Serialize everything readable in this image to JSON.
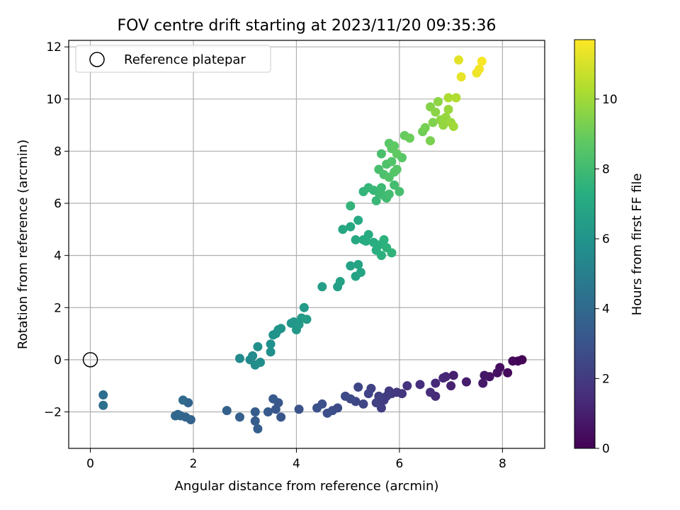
{
  "chart_data": {
    "type": "scatter",
    "title": "FOV centre drift starting at 2023/11/20 09:35:36",
    "xlabel": "Angular distance from reference (arcmin)",
    "ylabel": "Rotation from reference (arcmin)",
    "xlim": [
      -0.42,
      8.82
    ],
    "ylim": [
      -3.4,
      12.25
    ],
    "xticks": [
      0,
      2,
      4,
      6,
      8
    ],
    "yticks": [
      -2,
      0,
      2,
      4,
      6,
      8,
      10,
      12
    ],
    "grid": true,
    "legend": {
      "placement": "top-left",
      "entries": [
        "Reference platepar"
      ]
    },
    "reference_point": {
      "x": 0,
      "y": 0,
      "label": "Reference platepar"
    },
    "colorbar": {
      "label": "Hours from first FF file",
      "min": 0,
      "max": 11.7,
      "ticks": [
        0,
        2,
        4,
        6,
        8,
        10
      ],
      "colormap": "viridis"
    },
    "points": [
      [
        8.38,
        0.0,
        0.0
      ],
      [
        8.3,
        -0.05,
        0.1
      ],
      [
        8.2,
        -0.05,
        0.2
      ],
      [
        8.1,
        -0.5,
        0.3
      ],
      [
        7.95,
        -0.3,
        0.4
      ],
      [
        7.9,
        -0.5,
        0.5
      ],
      [
        7.75,
        -0.65,
        0.6
      ],
      [
        7.65,
        -0.6,
        0.7
      ],
      [
        7.62,
        -0.9,
        0.8
      ],
      [
        7.3,
        -0.85,
        0.9
      ],
      [
        7.05,
        -0.6,
        1.0
      ],
      [
        7.0,
        -1.0,
        1.1
      ],
      [
        6.9,
        -0.65,
        1.2
      ],
      [
        6.85,
        -0.7,
        1.3
      ],
      [
        6.7,
        -0.9,
        1.35
      ],
      [
        6.7,
        -1.4,
        1.4
      ],
      [
        6.6,
        -1.25,
        1.5
      ],
      [
        6.4,
        -0.95,
        1.6
      ],
      [
        6.15,
        -1.0,
        1.7
      ],
      [
        6.05,
        -1.3,
        1.8
      ],
      [
        5.95,
        -1.25,
        1.9
      ],
      [
        5.85,
        -1.3,
        1.95
      ],
      [
        5.8,
        -1.2,
        2.0
      ],
      [
        5.75,
        -1.4,
        2.05
      ],
      [
        5.7,
        -1.55,
        2.1
      ],
      [
        5.65,
        -1.85,
        2.15
      ],
      [
        5.6,
        -1.4,
        2.2
      ],
      [
        5.55,
        -1.65,
        2.25
      ],
      [
        5.45,
        -1.1,
        2.3
      ],
      [
        5.4,
        -1.3,
        2.35
      ],
      [
        5.3,
        -1.7,
        2.4
      ],
      [
        5.2,
        -1.05,
        2.45
      ],
      [
        5.15,
        -1.6,
        2.5
      ],
      [
        5.05,
        -1.5,
        2.55
      ],
      [
        4.95,
        -1.4,
        2.6
      ],
      [
        4.8,
        -1.85,
        2.7
      ],
      [
        4.7,
        -1.95,
        2.75
      ],
      [
        4.6,
        -2.05,
        2.8
      ],
      [
        4.5,
        -1.7,
        2.85
      ],
      [
        4.4,
        -1.85,
        2.9
      ],
      [
        4.05,
        -1.9,
        3.0
      ],
      [
        3.7,
        -2.2,
        3.1
      ],
      [
        3.65,
        -1.65,
        3.15
      ],
      [
        3.6,
        -1.9,
        3.2
      ],
      [
        3.55,
        -1.5,
        3.25
      ],
      [
        3.45,
        -2.0,
        3.3
      ],
      [
        3.2,
        -2.0,
        3.4
      ],
      [
        3.2,
        -2.35,
        3.45
      ],
      [
        3.25,
        -2.65,
        3.5
      ],
      [
        2.9,
        -2.2,
        3.55
      ],
      [
        2.65,
        -1.95,
        3.6
      ],
      [
        1.95,
        -2.3,
        3.7
      ],
      [
        1.9,
        -1.65,
        3.75
      ],
      [
        1.85,
        -2.2,
        3.8
      ],
      [
        1.75,
        -2.15,
        3.85
      ],
      [
        1.7,
        -2.1,
        3.9
      ],
      [
        1.65,
        -2.15,
        3.95
      ],
      [
        1.8,
        -1.55,
        4.0
      ],
      [
        0.25,
        -1.35,
        4.2
      ],
      [
        0.25,
        -1.75,
        4.3
      ],
      [
        2.9,
        0.05,
        5.5
      ],
      [
        3.1,
        0.0,
        5.55
      ],
      [
        3.15,
        0.15,
        5.6
      ],
      [
        3.2,
        -0.2,
        5.65
      ],
      [
        3.25,
        0.5,
        5.7
      ],
      [
        3.3,
        -0.1,
        5.75
      ],
      [
        3.5,
        0.3,
        5.8
      ],
      [
        3.5,
        0.6,
        5.85
      ],
      [
        3.55,
        0.95,
        5.9
      ],
      [
        3.6,
        1.0,
        5.95
      ],
      [
        3.65,
        1.15,
        6.0
      ],
      [
        3.7,
        1.2,
        6.05
      ],
      [
        3.9,
        1.4,
        6.1
      ],
      [
        3.95,
        1.45,
        6.15
      ],
      [
        4.0,
        1.15,
        6.2
      ],
      [
        4.05,
        1.35,
        6.25
      ],
      [
        4.1,
        1.6,
        6.3
      ],
      [
        4.15,
        2.0,
        6.35
      ],
      [
        4.2,
        1.55,
        6.4
      ],
      [
        4.5,
        2.8,
        6.5
      ],
      [
        4.8,
        2.8,
        6.6
      ],
      [
        4.85,
        3.0,
        6.65
      ],
      [
        5.05,
        3.6,
        6.7
      ],
      [
        5.15,
        3.2,
        6.75
      ],
      [
        5.2,
        3.65,
        6.8
      ],
      [
        5.25,
        3.35,
        6.85
      ],
      [
        4.9,
        5.0,
        6.9
      ],
      [
        5.05,
        5.1,
        6.95
      ],
      [
        5.15,
        4.6,
        7.0
      ],
      [
        5.2,
        5.35,
        7.05
      ],
      [
        5.3,
        4.6,
        7.1
      ],
      [
        5.35,
        4.55,
        7.15
      ],
      [
        5.4,
        4.8,
        7.2
      ],
      [
        5.5,
        4.5,
        7.25
      ],
      [
        5.55,
        4.2,
        7.3
      ],
      [
        5.6,
        4.4,
        7.35
      ],
      [
        5.65,
        4.0,
        7.4
      ],
      [
        5.7,
        4.6,
        7.45
      ],
      [
        5.75,
        4.3,
        7.5
      ],
      [
        5.85,
        4.1,
        7.55
      ],
      [
        5.05,
        5.9,
        7.6
      ],
      [
        5.3,
        6.45,
        7.65
      ],
      [
        5.4,
        6.6,
        7.7
      ],
      [
        5.5,
        6.5,
        7.75
      ],
      [
        5.55,
        6.1,
        7.8
      ],
      [
        5.6,
        6.4,
        7.85
      ],
      [
        5.65,
        6.6,
        7.9
      ],
      [
        5.7,
        6.3,
        7.95
      ],
      [
        5.75,
        6.2,
        8.0
      ],
      [
        5.8,
        6.35,
        8.05
      ],
      [
        5.9,
        6.7,
        8.1
      ],
      [
        6.0,
        6.45,
        8.15
      ],
      [
        5.6,
        7.3,
        8.2
      ],
      [
        5.65,
        7.9,
        8.25
      ],
      [
        5.7,
        7.1,
        8.3
      ],
      [
        5.75,
        7.5,
        8.35
      ],
      [
        5.8,
        7.0,
        8.4
      ],
      [
        5.85,
        7.6,
        8.45
      ],
      [
        5.9,
        7.2,
        8.5
      ],
      [
        5.95,
        7.3,
        8.55
      ],
      [
        6.05,
        7.75,
        8.6
      ],
      [
        5.8,
        8.3,
        8.65
      ],
      [
        5.85,
        8.1,
        8.7
      ],
      [
        5.9,
        8.2,
        8.75
      ],
      [
        5.95,
        7.9,
        8.8
      ],
      [
        6.1,
        8.6,
        8.9
      ],
      [
        6.2,
        8.5,
        9.0
      ],
      [
        6.45,
        8.75,
        9.1
      ],
      [
        6.5,
        8.9,
        9.2
      ],
      [
        6.6,
        8.4,
        9.3
      ],
      [
        6.65,
        9.1,
        9.4
      ],
      [
        6.6,
        9.7,
        9.5
      ],
      [
        6.7,
        9.5,
        9.6
      ],
      [
        6.75,
        9.9,
        9.65
      ],
      [
        6.8,
        9.2,
        9.7
      ],
      [
        6.85,
        9.0,
        9.75
      ],
      [
        6.9,
        9.3,
        9.8
      ],
      [
        6.95,
        9.6,
        9.85
      ],
      [
        7.0,
        9.1,
        9.9
      ],
      [
        7.05,
        8.95,
        10.0
      ],
      [
        6.95,
        10.05,
        10.2
      ],
      [
        7.1,
        10.05,
        10.3
      ],
      [
        7.15,
        11.5,
        11.2
      ],
      [
        7.2,
        10.85,
        11.3
      ],
      [
        7.5,
        11.0,
        11.4
      ],
      [
        7.55,
        11.15,
        11.5
      ],
      [
        7.6,
        11.45,
        11.6
      ]
    ]
  }
}
